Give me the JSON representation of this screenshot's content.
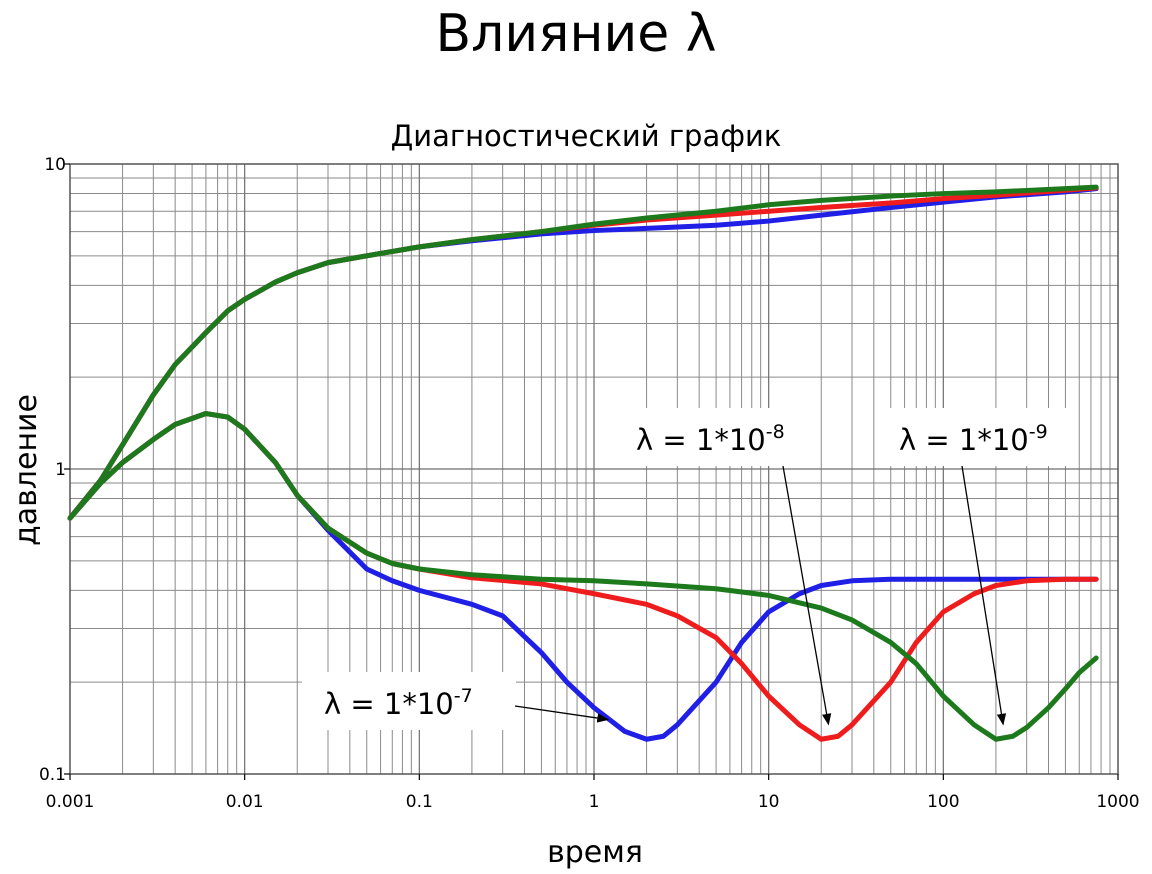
{
  "slide": {
    "title": "Влияние λ"
  },
  "chart_data": {
    "type": "line",
    "title": "Диагностический график",
    "xlabel": "время",
    "ylabel": "давление",
    "x_scale": "log",
    "y_scale": "log",
    "xlim": [
      0.001,
      1000
    ],
    "ylim": [
      0.1,
      10
    ],
    "grid": true,
    "x_ticks": [
      "0.001",
      "0.01",
      "0.1",
      "1",
      "10",
      "100",
      "1000"
    ],
    "y_ticks": [
      "0.1",
      "1",
      "10"
    ],
    "colors": {
      "blue": "#1f1fe6",
      "red": "#ee1c1c",
      "green": "#1c7a1c"
    },
    "series": [
      {
        "color": "#1f1fe6",
        "pressure": [
          [
            0.001,
            0.69
          ],
          [
            0.0015,
            0.92
          ],
          [
            0.002,
            1.2
          ],
          [
            0.003,
            1.75
          ],
          [
            0.004,
            2.2
          ],
          [
            0.006,
            2.8
          ],
          [
            0.008,
            3.3
          ],
          [
            0.01,
            3.6
          ],
          [
            0.015,
            4.1
          ],
          [
            0.02,
            4.4
          ],
          [
            0.03,
            4.75
          ],
          [
            0.05,
            5.0
          ],
          [
            0.1,
            5.35
          ],
          [
            0.2,
            5.6
          ],
          [
            0.5,
            5.9
          ],
          [
            1,
            6.05
          ],
          [
            2,
            6.15
          ],
          [
            5,
            6.3
          ],
          [
            10,
            6.5
          ],
          [
            20,
            6.8
          ],
          [
            50,
            7.2
          ],
          [
            100,
            7.5
          ],
          [
            200,
            7.8
          ],
          [
            500,
            8.1
          ],
          [
            750,
            8.3
          ]
        ],
        "derivative": [
          [
            0.001,
            0.69
          ],
          [
            0.0015,
            0.9
          ],
          [
            0.002,
            1.05
          ],
          [
            0.003,
            1.25
          ],
          [
            0.004,
            1.4
          ],
          [
            0.006,
            1.52
          ],
          [
            0.008,
            1.48
          ],
          [
            0.01,
            1.35
          ],
          [
            0.015,
            1.05
          ],
          [
            0.02,
            0.82
          ],
          [
            0.03,
            0.63
          ],
          [
            0.05,
            0.47
          ],
          [
            0.07,
            0.43
          ],
          [
            0.1,
            0.4
          ],
          [
            0.2,
            0.36
          ],
          [
            0.3,
            0.33
          ],
          [
            0.5,
            0.25
          ],
          [
            0.7,
            0.2
          ],
          [
            1,
            0.165
          ],
          [
            1.5,
            0.138
          ],
          [
            2,
            0.13
          ],
          [
            2.5,
            0.133
          ],
          [
            3,
            0.145
          ],
          [
            5,
            0.2
          ],
          [
            7,
            0.27
          ],
          [
            10,
            0.34
          ],
          [
            15,
            0.39
          ],
          [
            20,
            0.415
          ],
          [
            30,
            0.43
          ],
          [
            50,
            0.435
          ],
          [
            100,
            0.435
          ],
          [
            200,
            0.435
          ],
          [
            500,
            0.435
          ],
          [
            750,
            0.435
          ]
        ]
      },
      {
        "color": "#ee1c1c",
        "pressure": [
          [
            0.001,
            0.69
          ],
          [
            0.0015,
            0.92
          ],
          [
            0.002,
            1.2
          ],
          [
            0.003,
            1.75
          ],
          [
            0.004,
            2.2
          ],
          [
            0.006,
            2.8
          ],
          [
            0.008,
            3.3
          ],
          [
            0.01,
            3.6
          ],
          [
            0.015,
            4.1
          ],
          [
            0.02,
            4.4
          ],
          [
            0.03,
            4.75
          ],
          [
            0.05,
            5.0
          ],
          [
            0.1,
            5.35
          ],
          [
            0.2,
            5.65
          ],
          [
            0.5,
            6.0
          ],
          [
            1,
            6.3
          ],
          [
            2,
            6.55
          ],
          [
            5,
            6.8
          ],
          [
            10,
            7.0
          ],
          [
            20,
            7.2
          ],
          [
            50,
            7.45
          ],
          [
            100,
            7.7
          ],
          [
            200,
            7.9
          ],
          [
            500,
            8.2
          ],
          [
            750,
            8.35
          ]
        ],
        "derivative": [
          [
            0.001,
            0.69
          ],
          [
            0.0015,
            0.9
          ],
          [
            0.002,
            1.05
          ],
          [
            0.003,
            1.25
          ],
          [
            0.004,
            1.4
          ],
          [
            0.006,
            1.52
          ],
          [
            0.008,
            1.48
          ],
          [
            0.01,
            1.35
          ],
          [
            0.015,
            1.05
          ],
          [
            0.02,
            0.82
          ],
          [
            0.03,
            0.64
          ],
          [
            0.05,
            0.53
          ],
          [
            0.07,
            0.49
          ],
          [
            0.1,
            0.47
          ],
          [
            0.2,
            0.44
          ],
          [
            0.5,
            0.42
          ],
          [
            1,
            0.39
          ],
          [
            2,
            0.36
          ],
          [
            3,
            0.33
          ],
          [
            5,
            0.28
          ],
          [
            7,
            0.23
          ],
          [
            10,
            0.18
          ],
          [
            15,
            0.145
          ],
          [
            20,
            0.13
          ],
          [
            25,
            0.133
          ],
          [
            30,
            0.145
          ],
          [
            50,
            0.2
          ],
          [
            70,
            0.27
          ],
          [
            100,
            0.34
          ],
          [
            150,
            0.39
          ],
          [
            200,
            0.415
          ],
          [
            300,
            0.43
          ],
          [
            500,
            0.435
          ],
          [
            750,
            0.435
          ]
        ]
      },
      {
        "color": "#1c7a1c",
        "pressure": [
          [
            0.001,
            0.69
          ],
          [
            0.0015,
            0.92
          ],
          [
            0.002,
            1.2
          ],
          [
            0.003,
            1.75
          ],
          [
            0.004,
            2.2
          ],
          [
            0.006,
            2.8
          ],
          [
            0.008,
            3.3
          ],
          [
            0.01,
            3.6
          ],
          [
            0.015,
            4.1
          ],
          [
            0.02,
            4.4
          ],
          [
            0.03,
            4.75
          ],
          [
            0.05,
            5.0
          ],
          [
            0.1,
            5.35
          ],
          [
            0.2,
            5.65
          ],
          [
            0.5,
            6.0
          ],
          [
            1,
            6.35
          ],
          [
            2,
            6.65
          ],
          [
            5,
            7.0
          ],
          [
            10,
            7.35
          ],
          [
            20,
            7.6
          ],
          [
            50,
            7.85
          ],
          [
            100,
            8.0
          ],
          [
            200,
            8.1
          ],
          [
            500,
            8.3
          ],
          [
            750,
            8.4
          ]
        ],
        "derivative": [
          [
            0.001,
            0.69
          ],
          [
            0.0015,
            0.9
          ],
          [
            0.002,
            1.05
          ],
          [
            0.003,
            1.25
          ],
          [
            0.004,
            1.4
          ],
          [
            0.006,
            1.52
          ],
          [
            0.008,
            1.48
          ],
          [
            0.01,
            1.35
          ],
          [
            0.015,
            1.05
          ],
          [
            0.02,
            0.82
          ],
          [
            0.03,
            0.64
          ],
          [
            0.05,
            0.53
          ],
          [
            0.07,
            0.49
          ],
          [
            0.1,
            0.47
          ],
          [
            0.2,
            0.45
          ],
          [
            0.5,
            0.435
          ],
          [
            1,
            0.43
          ],
          [
            2,
            0.42
          ],
          [
            5,
            0.405
          ],
          [
            10,
            0.385
          ],
          [
            20,
            0.35
          ],
          [
            30,
            0.32
          ],
          [
            50,
            0.27
          ],
          [
            70,
            0.23
          ],
          [
            100,
            0.18
          ],
          [
            150,
            0.145
          ],
          [
            200,
            0.13
          ],
          [
            250,
            0.133
          ],
          [
            300,
            0.142
          ],
          [
            400,
            0.165
          ],
          [
            500,
            0.19
          ],
          [
            600,
            0.215
          ],
          [
            750,
            0.24
          ]
        ]
      }
    ],
    "annotations": [
      {
        "base": "λ = 1*10",
        "exp": "-7",
        "points_to_x": 1.2,
        "points_to_y": 0.142
      },
      {
        "base": "λ = 1*10",
        "exp": "-8",
        "points_to_x": 22,
        "points_to_y": 0.137
      },
      {
        "base": "λ = 1*10",
        "exp": "-9",
        "points_to_x": 220,
        "points_to_y": 0.137
      }
    ]
  }
}
